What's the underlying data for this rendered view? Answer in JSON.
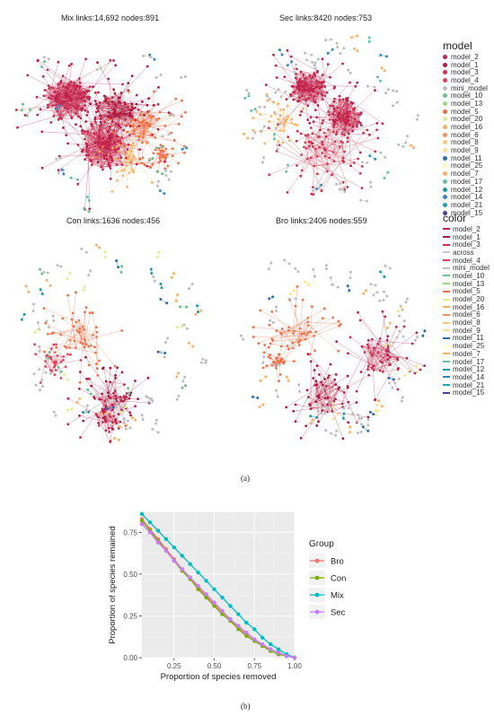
{
  "caption_a": "(a)",
  "caption_b": "(b)",
  "panels": [
    {
      "title": "Mix links:14,692 nodes:891"
    },
    {
      "title": "Sec links:8420  nodes:753"
    },
    {
      "title": "Con links:1636 nodes:456"
    },
    {
      "title": "Bro links:2406 nodes:559"
    }
  ],
  "model_legend": {
    "title": "model",
    "items": [
      {
        "label": "model_2",
        "color": "#c2234b"
      },
      {
        "label": "model_1",
        "color": "#b0173f"
      },
      {
        "label": "model_3",
        "color": "#d62f4a"
      },
      {
        "label": "model_4",
        "color": "#e0405a"
      },
      {
        "label": "mini_model",
        "color": "#bdbdbd"
      },
      {
        "label": "model_10",
        "color": "#6cc08b"
      },
      {
        "label": "model_13",
        "color": "#9ed67f"
      },
      {
        "label": "model_5",
        "color": "#f46d43"
      },
      {
        "label": "model_20",
        "color": "#d9ef8b"
      },
      {
        "label": "model_16",
        "color": "#fdae61"
      },
      {
        "label": "model_6",
        "color": "#fb8d59"
      },
      {
        "label": "model_8",
        "color": "#fdc67a"
      },
      {
        "label": "model_9",
        "color": "#fee08b"
      },
      {
        "label": "model_11",
        "color": "#2b6cb0"
      },
      {
        "label": "model_25",
        "color": "#ffffbf"
      },
      {
        "label": "model_7",
        "color": "#f9b35e"
      },
      {
        "label": "model_17",
        "color": "#66c2a5"
      },
      {
        "label": "model_12",
        "color": "#1a9aa8"
      },
      {
        "label": "model_14",
        "color": "#3288bd"
      },
      {
        "label": "model_21",
        "color": "#22a0b5"
      },
      {
        "label": "model_15",
        "color": "#4a3f9a"
      }
    ]
  },
  "color_legend": {
    "title": "color",
    "items": [
      {
        "label": "model_2",
        "color": "#c2234b"
      },
      {
        "label": "model_1",
        "color": "#b0173f"
      },
      {
        "label": "model_3",
        "color": "#d62f4a"
      },
      {
        "label": "across",
        "color": "#c8c8c8"
      },
      {
        "label": "model_4",
        "color": "#e0405a"
      },
      {
        "label": "mini_model",
        "color": "#bdbdbd"
      },
      {
        "label": "model_10",
        "color": "#6cc08b"
      },
      {
        "label": "model_13",
        "color": "#9ed67f"
      },
      {
        "label": "model_5",
        "color": "#f46d43"
      },
      {
        "label": "model_20",
        "color": "#d9ef8b"
      },
      {
        "label": "model_16",
        "color": "#fdae61"
      },
      {
        "label": "model_6",
        "color": "#fb8d59"
      },
      {
        "label": "model_8",
        "color": "#fdc67a"
      },
      {
        "label": "model_9",
        "color": "#fee08b"
      },
      {
        "label": "model_11",
        "color": "#2b6cb0"
      },
      {
        "label": "model_25",
        "color": "#ffffbf"
      },
      {
        "label": "model_7",
        "color": "#f9b35e"
      },
      {
        "label": "model_17",
        "color": "#66c2a5"
      },
      {
        "label": "model_12",
        "color": "#1a9aa8"
      },
      {
        "label": "model_14",
        "color": "#3288bd"
      },
      {
        "label": "model_21",
        "color": "#22a0b5"
      },
      {
        "label": "model_15",
        "color": "#4a3f9a"
      }
    ]
  },
  "chart_data": {
    "type": "line",
    "title": "",
    "xlabel": "Proportion of species removed",
    "ylabel": "Proportion of species remained",
    "xlim": [
      0.05,
      1.0
    ],
    "ylim": [
      0.0,
      0.87
    ],
    "x_ticks": [
      0.25,
      0.5,
      0.75,
      1.0
    ],
    "x_tick_labels": [
      "0.25",
      "0.50",
      "0.75",
      "1.00"
    ],
    "y_ticks": [
      0.0,
      0.25,
      0.5,
      0.75
    ],
    "y_tick_labels": [
      "0.00",
      "0.25",
      "0.50",
      "0.75"
    ],
    "grid": true,
    "background": "#ebebeb",
    "legend": {
      "title": "Group",
      "placement": "right"
    },
    "x": [
      0.05,
      0.1,
      0.15,
      0.2,
      0.25,
      0.3,
      0.35,
      0.4,
      0.45,
      0.5,
      0.55,
      0.6,
      0.65,
      0.7,
      0.75,
      0.8,
      0.85,
      0.9,
      0.95,
      1.0
    ],
    "series": [
      {
        "name": "Bro",
        "color": "#f8766d",
        "values": [
          0.83,
          0.77,
          0.71,
          0.65,
          0.59,
          0.53,
          0.48,
          0.42,
          0.37,
          0.32,
          0.27,
          0.23,
          0.18,
          0.14,
          0.11,
          0.07,
          0.05,
          0.03,
          0.01,
          0.0
        ]
      },
      {
        "name": "Con",
        "color": "#7cae00",
        "values": [
          0.82,
          0.76,
          0.7,
          0.64,
          0.58,
          0.52,
          0.47,
          0.41,
          0.36,
          0.31,
          0.26,
          0.22,
          0.17,
          0.13,
          0.1,
          0.07,
          0.04,
          0.02,
          0.01,
          0.0
        ]
      },
      {
        "name": "Mix",
        "color": "#00bfc4",
        "values": [
          0.86,
          0.81,
          0.76,
          0.71,
          0.66,
          0.61,
          0.56,
          0.51,
          0.46,
          0.41,
          0.36,
          0.31,
          0.26,
          0.21,
          0.17,
          0.12,
          0.08,
          0.05,
          0.02,
          0.0
        ]
      },
      {
        "name": "Sec",
        "color": "#c77cff",
        "values": [
          0.8,
          0.75,
          0.69,
          0.64,
          0.58,
          0.53,
          0.48,
          0.43,
          0.38,
          0.33,
          0.28,
          0.23,
          0.19,
          0.15,
          0.11,
          0.08,
          0.05,
          0.03,
          0.01,
          0.0
        ]
      }
    ]
  }
}
